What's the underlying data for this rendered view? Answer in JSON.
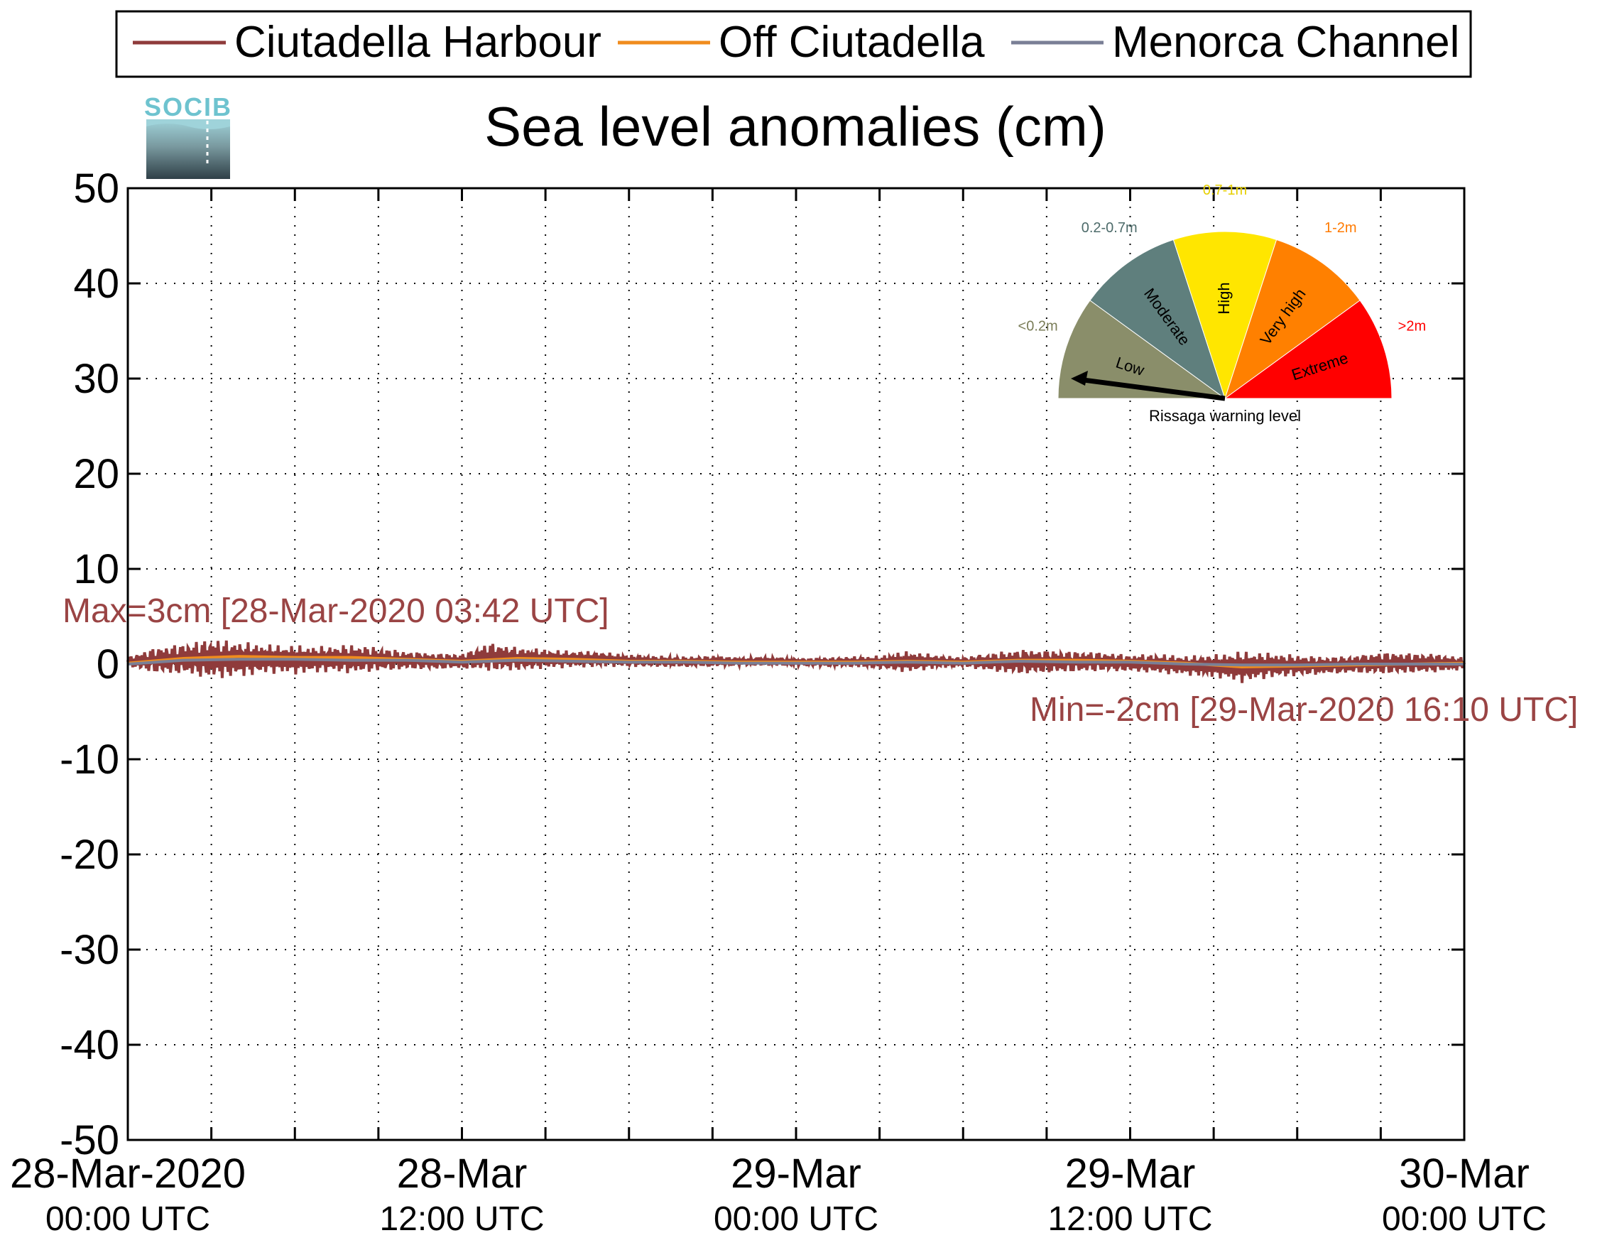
{
  "chart_data": {
    "type": "line",
    "title": "Sea level anomalies (cm)",
    "ylim": [
      -50,
      50
    ],
    "yticks": [
      50,
      40,
      30,
      20,
      10,
      0,
      -10,
      -20,
      -30,
      -40,
      -50
    ],
    "xlim_hours": [
      0,
      48
    ],
    "xticks": [
      {
        "hour": 0,
        "line1": "28-Mar-2020",
        "line2": "00:00 UTC"
      },
      {
        "hour": 12,
        "line1": "28-Mar",
        "line2": "12:00 UTC"
      },
      {
        "hour": 24,
        "line1": "29-Mar",
        "line2": "00:00 UTC"
      },
      {
        "hour": 36,
        "line1": "29-Mar",
        "line2": "12:00 UTC"
      },
      {
        "hour": 48,
        "line1": "30-Mar",
        "line2": "00:00 UTC"
      }
    ],
    "minor_x_hours": [
      3,
      6,
      9,
      12,
      15,
      18,
      21,
      24,
      27,
      30,
      33,
      36,
      39,
      42,
      45
    ],
    "grid": true,
    "legend_position": "top",
    "series": [
      {
        "name": "Ciutadella Harbour",
        "color": "#8f3b3b",
        "envelope_hours": [
          0,
          1,
          2,
          3,
          4,
          5,
          6,
          7,
          8,
          9,
          10,
          11,
          12,
          13,
          14,
          15,
          16,
          17,
          18,
          19,
          20,
          21,
          22,
          23,
          24,
          25,
          26,
          27,
          28,
          29,
          30,
          31,
          32,
          33,
          34,
          35,
          36,
          37,
          38,
          39,
          40,
          41,
          42,
          43,
          44,
          45,
          46,
          47,
          48
        ],
        "envelope_upper": [
          0.8,
          1.8,
          2.2,
          2.7,
          2.4,
          2.1,
          2.0,
          1.9,
          2.1,
          1.8,
          1.4,
          1.2,
          1.1,
          2.3,
          1.8,
          1.6,
          1.4,
          1.3,
          1.0,
          0.9,
          0.8,
          0.9,
          0.7,
          0.8,
          0.6,
          0.7,
          0.8,
          0.9,
          1.4,
          1.0,
          0.7,
          1.2,
          1.6,
          1.5,
          1.4,
          1.3,
          1.0,
          1.1,
          0.9,
          1.0,
          1.4,
          1.2,
          1.0,
          0.8,
          0.9,
          1.3,
          1.2,
          1.1,
          0.7
        ],
        "envelope_lower": [
          -0.3,
          -1.0,
          -1.1,
          -1.6,
          -1.4,
          -1.0,
          -1.1,
          -0.9,
          -1.0,
          -0.8,
          -0.6,
          -0.6,
          -0.5,
          -0.8,
          -0.7,
          -0.5,
          -0.4,
          -0.3,
          -0.3,
          -0.3,
          -0.3,
          -0.3,
          -0.2,
          -0.2,
          -0.2,
          -0.3,
          -0.3,
          -0.5,
          -0.9,
          -0.5,
          -0.3,
          -0.8,
          -1.1,
          -1.0,
          -0.9,
          -0.8,
          -0.8,
          -1.0,
          -1.2,
          -1.4,
          -2.0,
          -1.5,
          -1.3,
          -1.1,
          -1.0,
          -1.1,
          -1.0,
          -0.9,
          -0.6
        ],
        "max_label": "Max=3cm [28-Mar-2020 03:42 UTC]",
        "min_label": "Min=-2cm [29-Mar-2020 16:10 UTC]"
      },
      {
        "name": "Off Ciutadella",
        "color": "#f08c1e",
        "hours": [
          0,
          2,
          4,
          6,
          8,
          10,
          12,
          14,
          16,
          18,
          20,
          22,
          24,
          26,
          28,
          30,
          32,
          34,
          36,
          38,
          40,
          42,
          44,
          46,
          48
        ],
        "values": [
          0.1,
          0.6,
          0.8,
          0.7,
          0.7,
          0.5,
          0.3,
          0.6,
          0.5,
          0.3,
          0.3,
          0.2,
          0.2,
          0.2,
          0.3,
          0.2,
          0.4,
          0.4,
          0.3,
          0.1,
          -0.3,
          -0.2,
          -0.1,
          0.0,
          0.1
        ]
      },
      {
        "name": "Menorca Channel",
        "color": "#7a7f96",
        "hours": [
          0,
          2,
          4,
          6,
          8,
          10,
          12,
          14,
          16,
          18,
          20,
          22,
          24,
          26,
          28,
          30,
          32,
          34,
          36,
          38,
          40,
          42,
          44,
          46,
          48
        ],
        "values": [
          0.0,
          0.4,
          0.5,
          0.5,
          0.4,
          0.4,
          0.2,
          0.4,
          0.3,
          0.2,
          0.2,
          0.1,
          0.1,
          0.1,
          0.2,
          0.1,
          0.3,
          0.2,
          0.2,
          0.0,
          -0.1,
          -0.1,
          0.0,
          0.0,
          0.0
        ]
      }
    ]
  },
  "logo": {
    "text": "SOCIB"
  },
  "warning_gauge": {
    "caption": "Rissaga warning level",
    "current_level": "Low",
    "levels": [
      {
        "name": "Low",
        "range": "<0.2m",
        "color": "#8a8e6a",
        "range_color": "#7a7d58"
      },
      {
        "name": "Moderate",
        "range": "0.2-0.7m",
        "color": "#5f7f7d",
        "range_color": "#4d6b6a"
      },
      {
        "name": "High",
        "range": "0.7-1m",
        "color": "#ffe600",
        "range_color": "#e6cf00"
      },
      {
        "name": "Very high",
        "range": "1-2m",
        "color": "#ff8000",
        "range_color": "#ff7a00"
      },
      {
        "name": "Extreme",
        "range": ">2m",
        "color": "#ff0000",
        "range_color": "#ff0000"
      }
    ]
  }
}
